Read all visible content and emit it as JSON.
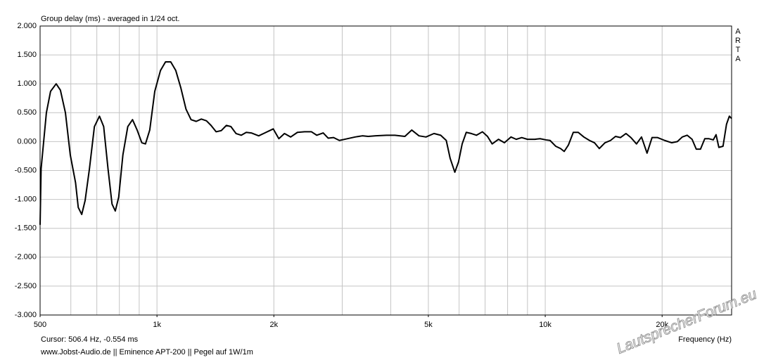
{
  "chart_data": {
    "type": "line",
    "title": "Group delay (ms) - averaged in 1/24 oct.",
    "brand": "ARTA",
    "cursor": "Cursor: 506.4 Hz, -0.554 ms",
    "footer": "www.Jobst-Audio.de  ||  Eminence APT-200  ||  Pegel auf 1W/1m",
    "x_label": "Frequency (Hz)",
    "watermark": "LautsprecherForum.eu",
    "log_x": true,
    "grid": true,
    "color": "#000000",
    "xlim": [
      500,
      30200
    ],
    "ylim": [
      -3,
      2
    ],
    "xticks": [
      500,
      {
        "value": 1000,
        "label": "1k"
      },
      {
        "value": 2000,
        "label": "2k"
      },
      {
        "value": 5000,
        "label": "5k"
      },
      {
        "value": 10000,
        "label": "10k"
      },
      {
        "value": 20000,
        "label": "20k"
      }
    ],
    "xgrid": [
      600,
      700,
      800,
      900,
      1000,
      2000,
      3000,
      4000,
      5000,
      6000,
      7000,
      8000,
      9000,
      10000,
      20000
    ],
    "yticks": [
      {
        "value": 2,
        "label": "2.000"
      },
      {
        "value": 1.5,
        "label": "1.500"
      },
      {
        "value": 1,
        "label": "1.000"
      },
      {
        "value": 0.5,
        "label": "0.500"
      },
      {
        "value": 0,
        "label": "0.000"
      },
      {
        "value": -0.5,
        "label": "-0.500"
      },
      {
        "value": -1,
        "label": "-1.000"
      },
      {
        "value": -1.5,
        "label": "-1.500"
      },
      {
        "value": -2,
        "label": "-2.000"
      },
      {
        "value": -2.5,
        "label": "-2.500"
      },
      {
        "value": -3,
        "label": "-3.000"
      }
    ],
    "x": [
      500,
      503,
      519,
      532,
      550,
      564,
      581,
      598,
      617,
      627,
      640,
      653,
      670,
      690,
      711,
      729,
      748,
      766,
      781,
      797,
      817,
      841,
      865,
      889,
      914,
      934,
      958,
      987,
      1021,
      1052,
      1085,
      1118,
      1152,
      1188,
      1224,
      1262,
      1301,
      1341,
      1378,
      1420,
      1464,
      1509,
      1550,
      1598,
      1648,
      1698,
      1750,
      1828,
      1909,
      1993,
      2060,
      2130,
      2210,
      2300,
      2400,
      2500,
      2580,
      2680,
      2760,
      2850,
      2950,
      3090,
      3240,
      3380,
      3500,
      3660,
      3900,
      4100,
      4350,
      4530,
      4730,
      4930,
      5170,
      5380,
      5560,
      5690,
      5850,
      5980,
      6110,
      6260,
      6450,
      6650,
      6890,
      7100,
      7300,
      7580,
      7850,
      8160,
      8420,
      8700,
      9000,
      9400,
      9700,
      10040,
      10290,
      10640,
      10950,
      11190,
      11470,
      11810,
      12160,
      12570,
      13000,
      13390,
      13780,
      14250,
      14730,
      15170,
      15620,
      16140,
      16620,
      17180,
      17700,
      18290,
      18840,
      19470,
      20310,
      21180,
      21890,
      22540,
      23210,
      23890,
      24490,
      25110,
      25760,
      26410,
      27090,
      27540,
      28000,
      28700,
      29300,
      29800,
      30200
    ],
    "values": [
      -1.44,
      -0.47,
      0.5,
      0.87,
      1.0,
      0.89,
      0.5,
      -0.23,
      -0.71,
      -1.14,
      -1.26,
      -1.02,
      -0.47,
      0.26,
      0.44,
      0.26,
      -0.47,
      -1.08,
      -1.2,
      -0.96,
      -0.23,
      0.26,
      0.38,
      0.2,
      -0.02,
      -0.04,
      0.2,
      0.87,
      1.23,
      1.38,
      1.38,
      1.23,
      0.93,
      0.56,
      0.38,
      0.35,
      0.39,
      0.36,
      0.28,
      0.17,
      0.19,
      0.28,
      0.26,
      0.14,
      0.11,
      0.16,
      0.15,
      0.1,
      0.16,
      0.22,
      0.05,
      0.14,
      0.08,
      0.16,
      0.17,
      0.17,
      0.11,
      0.15,
      0.06,
      0.07,
      0.02,
      0.05,
      0.08,
      0.1,
      0.09,
      0.1,
      0.11,
      0.11,
      0.09,
      0.2,
      0.1,
      0.08,
      0.14,
      0.11,
      0.02,
      -0.29,
      -0.53,
      -0.35,
      -0.04,
      0.16,
      0.14,
      0.11,
      0.17,
      0.09,
      -0.04,
      0.04,
      -0.02,
      0.08,
      0.04,
      0.07,
      0.04,
      0.04,
      0.05,
      0.03,
      0.02,
      -0.08,
      -0.12,
      -0.17,
      -0.06,
      0.16,
      0.16,
      0.08,
      0.02,
      -0.02,
      -0.12,
      -0.02,
      0.02,
      0.09,
      0.07,
      0.14,
      0.07,
      -0.04,
      0.08,
      -0.2,
      0.07,
      0.07,
      0.02,
      -0.02,
      0.0,
      0.08,
      0.11,
      0.04,
      -0.13,
      -0.13,
      0.05,
      0.05,
      0.03,
      0.12,
      -0.1,
      -0.08,
      0.3,
      0.44,
      0.4
    ]
  }
}
